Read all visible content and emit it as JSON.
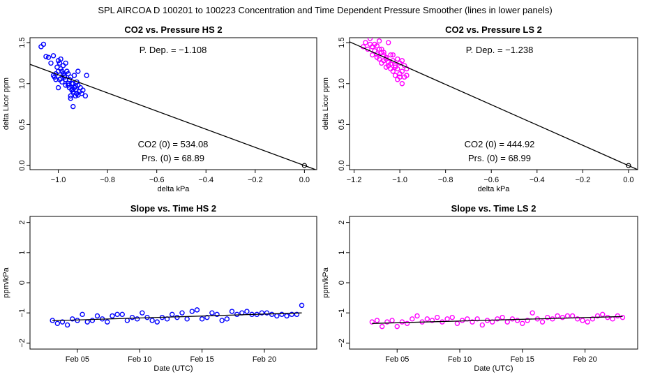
{
  "figure_title": "SPL   AIRCOA D   100201 to 100223   Concentration and Time Dependent Pressure Smoother (lines in lower panels)",
  "chart_data": [
    {
      "id": "co2-pressure-hs2",
      "type": "scatter",
      "title": "CO2 vs. Pressure HS 2",
      "xlabel": "delta kPa",
      "ylabel": "delta Licor ppm",
      "xlim": [
        -1.115,
        0.05
      ],
      "ylim": [
        -0.05,
        1.56
      ],
      "xticks": [
        -1.0,
        -0.8,
        -0.6,
        -0.4,
        -0.2,
        0.0
      ],
      "xtick_labels": [
        "−1.0",
        "−0.8",
        "−0.6",
        "−0.4",
        "−0.2",
        "0.0"
      ],
      "yticks": [
        0.0,
        0.5,
        1.0,
        1.5
      ],
      "ytick_labels": [
        "0.0",
        "0.5",
        "1.0",
        "1.5"
      ],
      "color": "#0000ff",
      "annotations": {
        "pdep": "P. Dep. =  −1.108",
        "co2_0": "CO2 (0) =  534.08",
        "prs_0": "Prs. (0) =  68.89"
      },
      "fit_line": {
        "x": [
          -1.115,
          0.05
        ],
        "y": [
          1.235,
          -0.055
        ]
      },
      "origin_point": [
        0.0,
        0.0
      ],
      "points": {
        "x": [
          -1.07,
          -1.06,
          -1.05,
          -1.04,
          -1.03,
          -1.02,
          -1.02,
          -1.015,
          -1.01,
          -1.005,
          -1.0,
          -1.0,
          -0.995,
          -0.995,
          -0.99,
          -0.99,
          -0.985,
          -0.98,
          -0.98,
          -0.975,
          -0.97,
          -0.97,
          -0.965,
          -0.96,
          -0.96,
          -0.955,
          -0.955,
          -0.95,
          -0.95,
          -0.945,
          -0.945,
          -0.94,
          -0.94,
          -0.94,
          -0.935,
          -0.935,
          -0.93,
          -0.93,
          -0.925,
          -0.925,
          -0.92,
          -0.92,
          -0.915,
          -0.91,
          -0.905,
          -0.9,
          -0.89,
          -0.885,
          -0.97,
          -0.985,
          -1.0,
          -0.99,
          -1.01,
          -0.95,
          -0.96,
          -0.93,
          -0.945,
          -0.975,
          -0.92,
          -0.94
        ],
        "y": [
          1.45,
          1.48,
          1.33,
          1.32,
          1.25,
          1.34,
          1.1,
          1.08,
          1.12,
          1.2,
          1.15,
          1.28,
          1.05,
          1.25,
          1.18,
          1.3,
          1.02,
          1.22,
          1.12,
          1.08,
          1.25,
          0.98,
          1.15,
          1.0,
          1.12,
          0.95,
          1.05,
          0.85,
          1.08,
          0.92,
          1.0,
          0.9,
          0.72,
          1.0,
          0.95,
          1.1,
          0.85,
          0.92,
          1.02,
          0.88,
          0.98,
          1.15,
          0.9,
          0.95,
          0.88,
          0.92,
          0.85,
          1.1,
          1.05,
          1.15,
          0.95,
          1.06,
          1.05,
          0.82,
          0.98,
          0.97,
          0.93,
          1.1,
          0.86,
          0.9
        ]
      }
    },
    {
      "id": "co2-pressure-ls2",
      "type": "scatter",
      "title": "CO2 vs. Pressure LS 2",
      "xlabel": "delta kPa",
      "ylabel": "delta Licor ppm",
      "xlim": [
        -1.22,
        0.04
      ],
      "ylim": [
        -0.05,
        1.56
      ],
      "xticks": [
        -1.2,
        -1.0,
        -0.8,
        -0.6,
        -0.4,
        -0.2,
        0.0
      ],
      "xtick_labels": [
        "−1.2",
        "−1.0",
        "−0.8",
        "−0.6",
        "−0.4",
        "−0.2",
        "0.0"
      ],
      "yticks": [
        0.0,
        0.5,
        1.0,
        1.5
      ],
      "ytick_labels": [
        "0.0",
        "0.5",
        "1.0",
        "1.5"
      ],
      "color": "#ff00ff",
      "annotations": {
        "pdep": "P. Dep. =  −1.238",
        "co2_0": "CO2 (0) =  444.92",
        "prs_0": "Prs. (0) =  68.99"
      },
      "fit_line": {
        "x": [
          -1.22,
          0.04
        ],
        "y": [
          1.51,
          -0.05
        ]
      },
      "origin_point": [
        0.0,
        0.0
      ],
      "points": {
        "x": [
          -1.17,
          -1.16,
          -1.15,
          -1.14,
          -1.13,
          -1.12,
          -1.12,
          -1.11,
          -1.1,
          -1.1,
          -1.09,
          -1.09,
          -1.08,
          -1.08,
          -1.07,
          -1.07,
          -1.06,
          -1.06,
          -1.05,
          -1.05,
          -1.04,
          -1.04,
          -1.03,
          -1.03,
          -1.02,
          -1.02,
          -1.01,
          -1.01,
          -1.0,
          -1.0,
          -0.99,
          -0.99,
          -0.98,
          -0.98,
          -0.97,
          -0.97,
          -1.13,
          -1.11,
          -1.09,
          -1.07,
          -1.05,
          -1.03,
          -1.01,
          -1.0,
          -0.99,
          -1.06,
          -1.04,
          -1.02,
          -1.08,
          -1.1
        ],
        "y": [
          1.6,
          1.45,
          1.5,
          1.42,
          1.48,
          1.35,
          1.45,
          1.4,
          1.32,
          1.46,
          1.3,
          1.42,
          1.25,
          1.38,
          1.28,
          1.35,
          1.2,
          1.32,
          1.22,
          1.5,
          1.18,
          1.35,
          1.15,
          1.28,
          1.1,
          1.22,
          1.05,
          1.18,
          1.12,
          1.25,
          1.0,
          1.15,
          1.08,
          1.22,
          1.1,
          1.18,
          1.55,
          1.48,
          1.52,
          1.38,
          1.26,
          1.35,
          1.3,
          1.08,
          1.28,
          1.3,
          1.24,
          1.2,
          1.42,
          1.36
        ]
      }
    },
    {
      "id": "slope-time-hs2",
      "type": "scatter",
      "title": "Slope vs. Time HS 2",
      "xlabel": "Date (UTC)",
      "ylabel": "ppm/kPa",
      "xlim": [
        1.2,
        24.2
      ],
      "ylim": [
        -2.2,
        2.2
      ],
      "xticks": [
        5,
        10,
        15,
        20
      ],
      "xtick_labels": [
        "Feb 05",
        "Feb 10",
        "Feb 15",
        "Feb 20"
      ],
      "yticks": [
        -2,
        -1,
        0,
        1,
        2
      ],
      "ytick_labels": [
        "−2",
        "−1",
        "0",
        "1",
        "2"
      ],
      "color": "#0000ff",
      "smooth_line": {
        "x": [
          3.0,
          23.0
        ],
        "y": [
          -1.26,
          -1.0
        ]
      },
      "points": {
        "x": [
          3.0,
          3.4,
          3.8,
          4.2,
          4.6,
          5.0,
          5.4,
          5.8,
          6.2,
          6.6,
          7.0,
          7.4,
          7.8,
          8.2,
          8.6,
          9.0,
          9.4,
          9.8,
          10.2,
          10.6,
          11.0,
          11.4,
          11.8,
          12.2,
          12.6,
          13.0,
          13.4,
          13.8,
          14.2,
          14.6,
          15.0,
          15.4,
          15.8,
          16.2,
          16.6,
          17.0,
          17.4,
          17.8,
          18.2,
          18.6,
          19.0,
          19.4,
          19.8,
          20.2,
          20.6,
          21.0,
          21.4,
          21.8,
          22.2,
          22.6,
          23.0
        ],
        "y": [
          -1.25,
          -1.35,
          -1.3,
          -1.4,
          -1.2,
          -1.25,
          -1.05,
          -1.3,
          -1.25,
          -1.1,
          -1.2,
          -1.3,
          -1.1,
          -1.05,
          -1.05,
          -1.25,
          -1.15,
          -1.2,
          -1.0,
          -1.15,
          -1.25,
          -1.3,
          -1.15,
          -1.2,
          -1.05,
          -1.15,
          -1.0,
          -1.2,
          -0.95,
          -0.9,
          -1.2,
          -1.15,
          -1.0,
          -1.05,
          -1.25,
          -1.2,
          -0.95,
          -1.05,
          -1.0,
          -0.95,
          -1.05,
          -1.05,
          -1.0,
          -1.0,
          -1.05,
          -1.1,
          -1.05,
          -1.1,
          -1.05,
          -1.05,
          -0.75
        ]
      }
    },
    {
      "id": "slope-time-ls2",
      "type": "scatter",
      "title": "Slope vs. Time LS 2",
      "xlabel": "Date (UTC)",
      "ylabel": "ppm/kPa",
      "xlim": [
        1.2,
        24.2
      ],
      "ylim": [
        -2.2,
        2.2
      ],
      "xticks": [
        5,
        10,
        15,
        20
      ],
      "xtick_labels": [
        "Feb 05",
        "Feb 10",
        "Feb 15",
        "Feb 20"
      ],
      "yticks": [
        -2,
        -1,
        0,
        1,
        2
      ],
      "ytick_labels": [
        "−2",
        "−1",
        "0",
        "1",
        "2"
      ],
      "color": "#ff00ff",
      "smooth_line": {
        "x": [
          3.0,
          23.0
        ],
        "y": [
          -1.35,
          -1.12
        ]
      },
      "points": {
        "x": [
          3.0,
          3.4,
          3.8,
          4.2,
          4.6,
          5.0,
          5.4,
          5.8,
          6.2,
          6.6,
          7.0,
          7.4,
          7.8,
          8.2,
          8.6,
          9.0,
          9.4,
          9.8,
          10.2,
          10.6,
          11.0,
          11.4,
          11.8,
          12.2,
          12.6,
          13.0,
          13.4,
          13.8,
          14.2,
          14.6,
          15.0,
          15.4,
          15.8,
          16.2,
          16.6,
          17.0,
          17.4,
          17.8,
          18.2,
          18.6,
          19.0,
          19.4,
          19.8,
          20.2,
          20.6,
          21.0,
          21.4,
          21.8,
          22.2,
          22.6,
          23.0
        ],
        "y": [
          -1.3,
          -1.25,
          -1.45,
          -1.3,
          -1.25,
          -1.45,
          -1.3,
          -1.35,
          -1.2,
          -1.1,
          -1.3,
          -1.2,
          -1.25,
          -1.15,
          -1.3,
          -1.2,
          -1.15,
          -1.35,
          -1.25,
          -1.2,
          -1.3,
          -1.2,
          -1.4,
          -1.25,
          -1.3,
          -1.2,
          -1.15,
          -1.3,
          -1.2,
          -1.25,
          -1.35,
          -1.25,
          -1.0,
          -1.2,
          -1.3,
          -1.15,
          -1.2,
          -1.1,
          -1.15,
          -1.1,
          -1.1,
          -1.2,
          -1.25,
          -1.3,
          -1.2,
          -1.1,
          -1.05,
          -1.15,
          -1.2,
          -1.1,
          -1.15
        ]
      }
    }
  ]
}
